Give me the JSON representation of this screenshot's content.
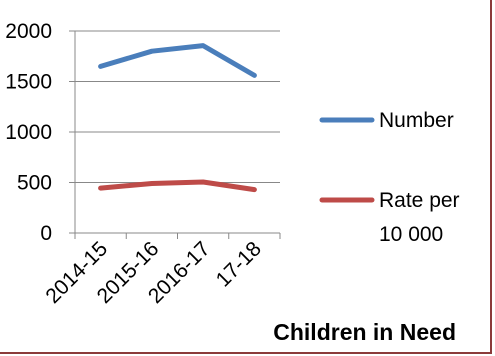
{
  "chart_data": {
    "type": "line",
    "categories": [
      "2014-15",
      "2015-16",
      "2016-17",
      "17-18"
    ],
    "series": [
      {
        "name": "Number",
        "values": [
          1650,
          1800,
          1855,
          1560
        ],
        "color": "#4a7ebb"
      },
      {
        "name_lines": [
          "Rate per",
          "10 000"
        ],
        "values": [
          445,
          490,
          505,
          430
        ],
        "color": "#be4b48"
      }
    ],
    "ylim": [
      0,
      2000
    ],
    "yticks": [
      "0",
      "500",
      "1000",
      "1500",
      "2000"
    ],
    "grid": true,
    "legend": "right",
    "caption": "Children in Need"
  }
}
